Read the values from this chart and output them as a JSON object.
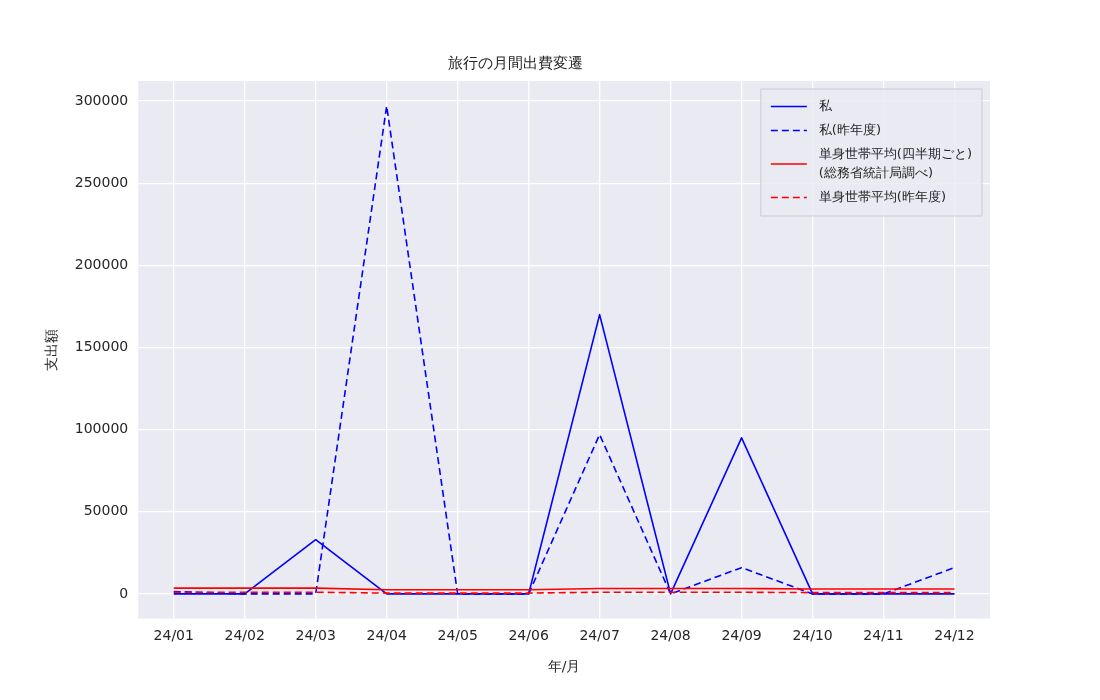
{
  "chart_data": {
    "type": "line",
    "title": "旅行の月間出費変遷",
    "xlabel": "年/月",
    "ylabel": "支出額",
    "categories": [
      "24/01",
      "24/02",
      "24/03",
      "24/04",
      "24/05",
      "24/06",
      "24/07",
      "24/08",
      "24/09",
      "24/10",
      "24/11",
      "24/12"
    ],
    "series": [
      {
        "name": "私",
        "color": "#0000ff",
        "line_style": "solid",
        "values": [
          0,
          0,
          33000,
          0,
          0,
          0,
          170000,
          0,
          95000,
          0,
          0,
          0
        ]
      },
      {
        "name": "私(昨年度)",
        "color": "#0000ff",
        "line_style": "dashed",
        "values": [
          1500,
          0,
          0,
          297000,
          0,
          0,
          97000,
          0,
          16000,
          0,
          0,
          16000
        ]
      },
      {
        "name": "単身世帯平均(四半期ごと)\n(総務省統計局調べ)",
        "color": "#ff0000",
        "line_style": "solid",
        "values": [
          3500,
          3500,
          3500,
          2500,
          2500,
          2500,
          3300,
          3300,
          3300,
          3000,
          3000,
          3000
        ]
      },
      {
        "name": "単身世帯平均(昨年度)",
        "color": "#ff0000",
        "line_style": "dashed",
        "values": [
          1000,
          1000,
          1000,
          500,
          500,
          500,
          1000,
          1000,
          1000,
          800,
          800,
          800
        ]
      }
    ],
    "ylim": [
      -14900,
      312200
    ],
    "yticks": [
      0,
      50000,
      100000,
      150000,
      200000,
      250000,
      300000
    ],
    "grid": true,
    "legend": "top right",
    "marker": "none"
  }
}
